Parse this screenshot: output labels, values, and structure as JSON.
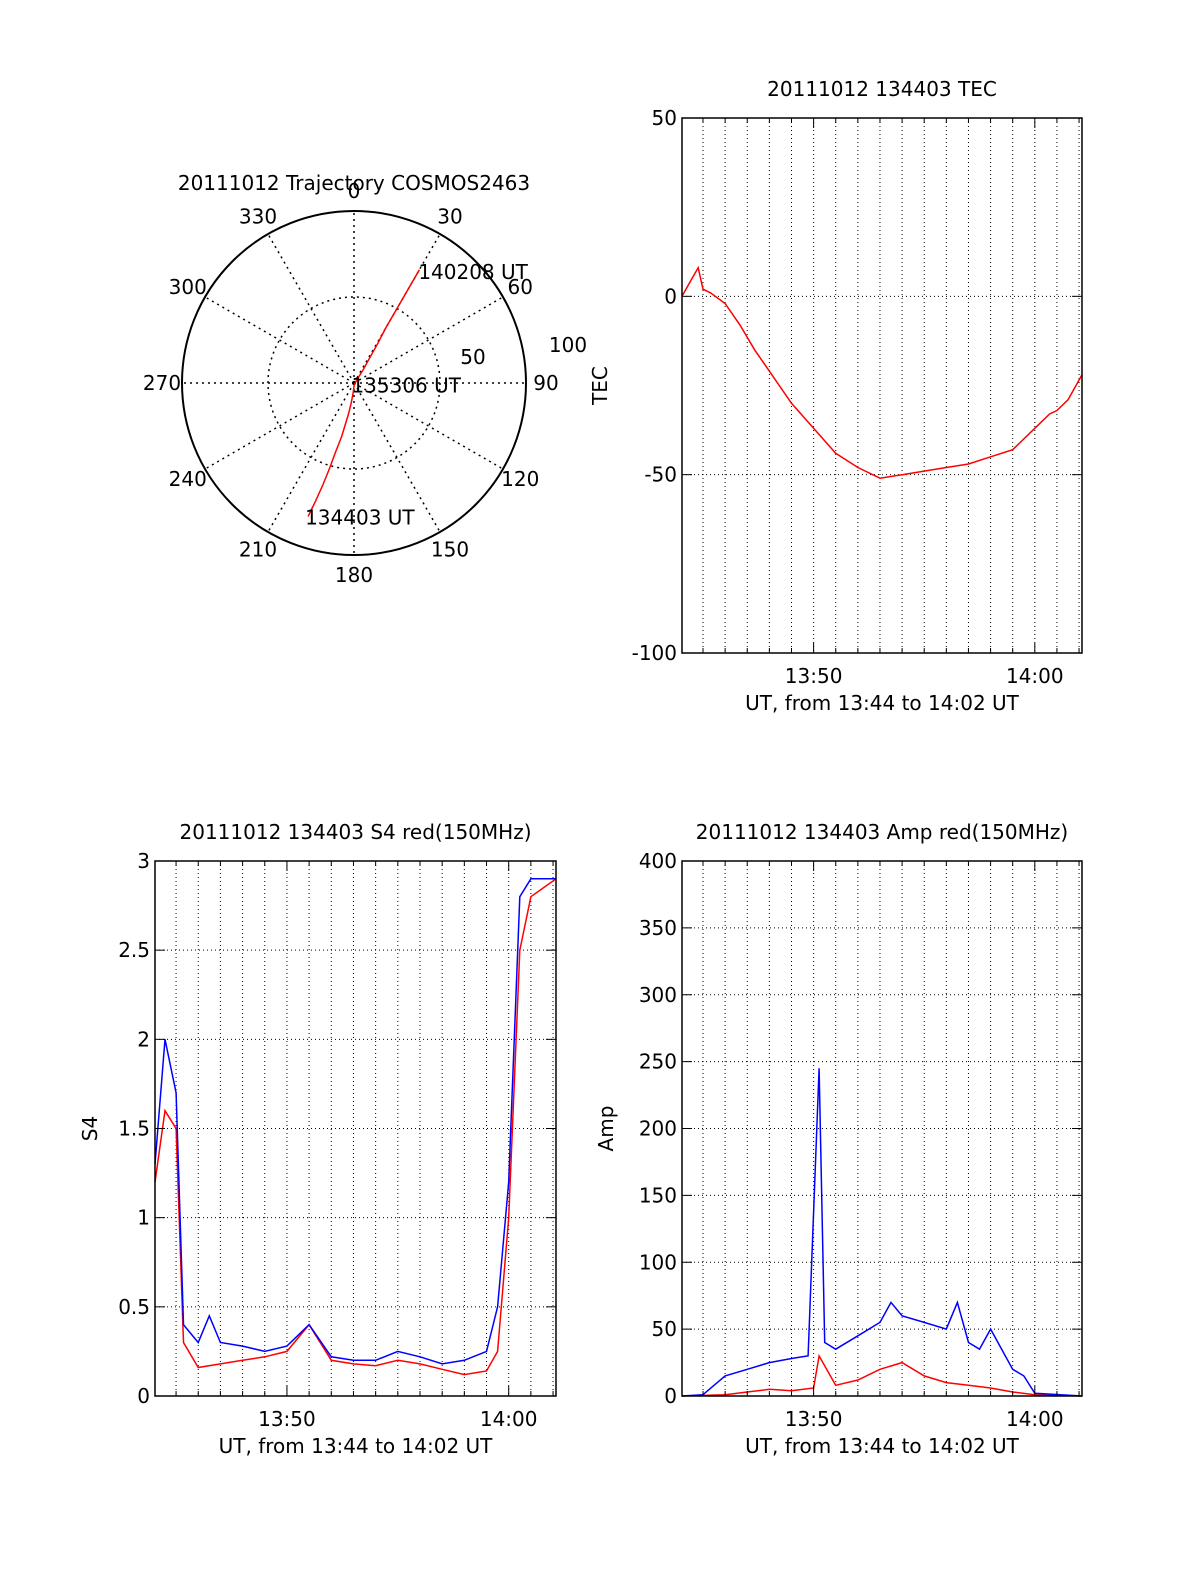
{
  "colors": {
    "background": "#ffffff",
    "axis": "#000000",
    "red_series": "#ff0000",
    "blue_series": "#0000ff"
  },
  "chart_data": [
    {
      "id": "trajectory",
      "type": "polar",
      "title": "20111012 Trajectory COSMOS2463",
      "angle_ticks": [
        "0",
        "30",
        "60",
        "90",
        "120",
        "150",
        "180",
        "210",
        "240",
        "270",
        "300",
        "330"
      ],
      "angle_tick_values": [
        0,
        30,
        60,
        90,
        120,
        150,
        180,
        210,
        240,
        270,
        300,
        330
      ],
      "radial_ticks": [
        "50",
        "100"
      ],
      "radial_tick_values": [
        50,
        100
      ],
      "rlim": [
        0,
        100
      ],
      "grid": true,
      "series": [
        {
          "color": "#ff0000",
          "azimuth_deg": [
            199,
            198,
            197,
            196,
            195,
            193,
            192,
            190,
            188,
            185,
            180,
            165,
            40,
            35,
            32,
            31,
            30,
            30,
            30,
            30,
            30
          ],
          "radius": [
            82,
            72,
            62,
            52,
            42,
            32,
            25,
            18,
            12,
            6,
            2,
            1,
            3,
            9,
            17,
            27,
            37,
            47,
            57,
            67,
            76
          ]
        }
      ],
      "annotations": [
        {
          "text": "140208 UT",
          "azimuth_deg": 31,
          "radius": 76
        },
        {
          "text": "135306 UT",
          "azimuth_deg": 165,
          "radius": 1
        },
        {
          "text": "134403 UT",
          "azimuth_deg": 199,
          "radius": 82
        }
      ]
    },
    {
      "id": "tec",
      "type": "line",
      "title": "20111012 134403 TEC",
      "xlabel": "UT, from 13:44 to 14:02 UT",
      "ylabel": "TEC",
      "xlim": [
        "13:44:03",
        "14:02:08"
      ],
      "ylim": [
        -100,
        50
      ],
      "x_ticks": [
        "13:50",
        "14:00"
      ],
      "x_tick_values": [
        "13:50:00",
        "14:00:00"
      ],
      "y_ticks": [
        "-100",
        "-50",
        "0",
        "50"
      ],
      "y_tick_values": [
        -100,
        -50,
        0,
        50
      ],
      "grid": true,
      "series": [
        {
          "color": "#ff0000",
          "x": [
            "13:44:03",
            "13:44:30",
            "13:44:47",
            "13:45:00",
            "13:45:20",
            "13:46:00",
            "13:46:40",
            "13:47:20",
            "13:48:00",
            "13:49:00",
            "13:50:00",
            "13:51:00",
            "13:52:00",
            "13:53:00",
            "13:54:00",
            "13:55:00",
            "13:56:00",
            "13:57:00",
            "13:58:00",
            "13:59:00",
            "14:00:00",
            "14:00:40",
            "14:01:00",
            "14:01:30",
            "14:02:08"
          ],
          "y": [
            0,
            5,
            8,
            2,
            1,
            -2,
            -8,
            -15,
            -21,
            -30,
            -37,
            -44,
            -48,
            -51,
            -50,
            -49,
            -48,
            -47,
            -45,
            -43,
            -37,
            -33,
            -32,
            -29,
            -22
          ]
        }
      ]
    },
    {
      "id": "s4",
      "type": "line",
      "title": "20111012 134403 S4 red(150MHz)",
      "xlabel": "UT, from 13:44 to 14:02 UT",
      "ylabel": "S4",
      "xlim": [
        "13:44:03",
        "14:02:08"
      ],
      "ylim": [
        0,
        3
      ],
      "x_ticks": [
        "13:50",
        "14:00"
      ],
      "x_tick_values": [
        "13:50:00",
        "14:00:00"
      ],
      "y_ticks": [
        "0",
        "0.5",
        "1",
        "1.5",
        "2",
        "2.5",
        "3"
      ],
      "y_tick_values": [
        0,
        0.5,
        1,
        1.5,
        2,
        2.5,
        3
      ],
      "grid": true,
      "series": [
        {
          "color": "#ff0000",
          "x": [
            "13:44:03",
            "13:44:30",
            "13:45:00",
            "13:45:20",
            "13:46:00",
            "13:47:00",
            "13:48:00",
            "13:49:00",
            "13:50:00",
            "13:51:00",
            "13:52:00",
            "13:53:00",
            "13:54:00",
            "13:55:00",
            "13:56:00",
            "13:57:00",
            "13:58:00",
            "13:59:00",
            "13:59:30",
            "14:00:00",
            "14:00:30",
            "14:01:00",
            "14:02:08"
          ],
          "y": [
            1.2,
            1.6,
            1.5,
            0.3,
            0.16,
            0.18,
            0.2,
            0.22,
            0.25,
            0.4,
            0.2,
            0.18,
            0.17,
            0.2,
            0.18,
            0.15,
            0.12,
            0.14,
            0.25,
            1.0,
            2.5,
            2.8,
            2.9
          ]
        },
        {
          "color": "#0000ff",
          "x": [
            "13:44:03",
            "13:44:30",
            "13:45:00",
            "13:45:20",
            "13:46:00",
            "13:46:30",
            "13:47:00",
            "13:48:00",
            "13:49:00",
            "13:50:00",
            "13:51:00",
            "13:52:00",
            "13:53:00",
            "13:54:00",
            "13:55:00",
            "13:56:00",
            "13:57:00",
            "13:58:00",
            "13:59:00",
            "13:59:30",
            "14:00:00",
            "14:00:30",
            "14:01:00",
            "14:02:08"
          ],
          "y": [
            1.3,
            2.0,
            1.7,
            0.4,
            0.3,
            0.45,
            0.3,
            0.28,
            0.25,
            0.28,
            0.4,
            0.22,
            0.2,
            0.2,
            0.25,
            0.22,
            0.18,
            0.2,
            0.25,
            0.5,
            1.2,
            2.8,
            2.9,
            2.9
          ]
        }
      ]
    },
    {
      "id": "amp",
      "type": "line",
      "title": "20111012 134403 Amp red(150MHz)",
      "xlabel": "UT, from 13:44 to 14:02 UT",
      "ylabel": "Amp",
      "xlim": [
        "13:44:03",
        "14:02:08"
      ],
      "ylim": [
        0,
        400
      ],
      "x_ticks": [
        "13:50",
        "14:00"
      ],
      "x_tick_values": [
        "13:50:00",
        "14:00:00"
      ],
      "y_ticks": [
        "0",
        "50",
        "100",
        "150",
        "200",
        "250",
        "300",
        "350",
        "400"
      ],
      "y_tick_values": [
        0,
        50,
        100,
        150,
        200,
        250,
        300,
        350,
        400
      ],
      "grid": true,
      "series": [
        {
          "color": "#ff0000",
          "x": [
            "13:44:03",
            "13:46:00",
            "13:47:00",
            "13:48:00",
            "13:49:00",
            "13:50:00",
            "13:50:15",
            "13:51:00",
            "13:52:00",
            "13:53:00",
            "13:54:00",
            "13:55:00",
            "13:56:00",
            "13:57:00",
            "13:58:00",
            "13:59:00",
            "14:00:00",
            "14:02:08"
          ],
          "y": [
            0,
            1,
            3,
            5,
            4,
            6,
            30,
            8,
            12,
            20,
            25,
            15,
            10,
            8,
            6,
            3,
            1,
            0
          ]
        },
        {
          "color": "#0000ff",
          "x": [
            "13:44:03",
            "13:45:00",
            "13:46:00",
            "13:47:00",
            "13:48:00",
            "13:49:00",
            "13:49:45",
            "13:50:15",
            "13:50:30",
            "13:51:00",
            "13:52:00",
            "13:53:00",
            "13:53:30",
            "13:54:00",
            "13:55:00",
            "13:56:00",
            "13:56:30",
            "13:57:00",
            "13:57:30",
            "13:58:00",
            "13:59:00",
            "13:59:30",
            "14:00:00",
            "14:02:08"
          ],
          "y": [
            0,
            1,
            15,
            20,
            25,
            28,
            30,
            245,
            40,
            35,
            45,
            55,
            70,
            60,
            55,
            50,
            70,
            40,
            35,
            50,
            20,
            15,
            2,
            0
          ]
        }
      ]
    }
  ]
}
